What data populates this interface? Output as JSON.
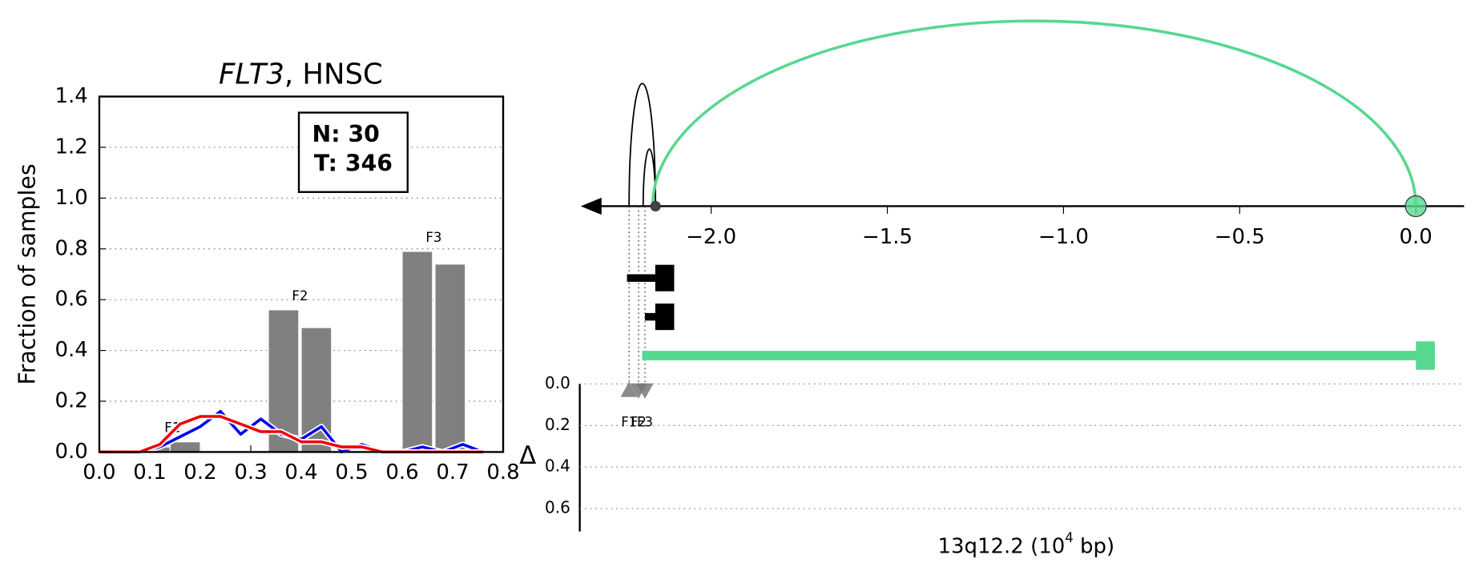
{
  "chart_data": [
    {
      "type": "bar",
      "title": [
        "FLT3",
        ", HNSC"
      ],
      "ylabel": "Fraction of samples",
      "annotations": [
        "N: 30",
        "T: 346"
      ],
      "xlim": [
        0,
        0.8
      ],
      "ylim": [
        0,
        1.4
      ],
      "xticks": [
        {
          "value": 0,
          "label": "0.0"
        },
        0.1,
        0.2,
        0.3,
        0.4,
        0.5,
        0.6,
        0.7,
        0.8
      ],
      "yticks": [
        {
          "value": 0,
          "label": "0.0"
        },
        0.2,
        0.4,
        0.6,
        0.8,
        {
          "value": 1,
          "label": "1.0"
        },
        1.2,
        1.4
      ],
      "grid": true,
      "bars": {
        "x": [
          0.12,
          0.17,
          0.365,
          0.43,
          0.63,
          0.695
        ],
        "values": [
          0.02,
          0.04,
          0.56,
          0.49,
          0.79,
          0.74
        ],
        "color": "#808080",
        "labels": [
          "F1",
          "F2",
          "F3"
        ]
      },
      "x": [
        0,
        0.04,
        0.08,
        0.12,
        0.16,
        0.2,
        0.24,
        0.28,
        0.32,
        0.36,
        0.4,
        0.44,
        0.48,
        0.52,
        0.56,
        0.6,
        0.64,
        0.68,
        0.72,
        0.76
      ],
      "series": [
        {
          "color": "#0000ee",
          "values": [
            0,
            0,
            0,
            0.02,
            0.06,
            0.1,
            0.16,
            0.07,
            0.13,
            0.07,
            0.05,
            0.1,
            0,
            0.03,
            0,
            0,
            0.02,
            0,
            0.03,
            0
          ]
        },
        {
          "color": "#ee0000",
          "values": [
            0,
            0,
            0,
            0.03,
            0.11,
            0.14,
            0.14,
            0.11,
            0.08,
            0.08,
            0.04,
            0.04,
            0.02,
            0.02,
            0,
            0,
            0,
            0,
            0,
            0
          ]
        }
      ]
    },
    {
      "type": "arc",
      "xlabel": [
        "13q12.2 (10",
        "4",
        " bp)"
      ],
      "ylabel": "Δ",
      "xlim": [
        -2.373,
        0.137
      ],
      "xticks": [
        {
          "value": -2,
          "label": "−2.0"
        },
        {
          "value": -1.5,
          "label": "−1.5"
        },
        {
          "value": -1,
          "label": "−1.0"
        },
        {
          "value": -0.5,
          "label": "−0.5"
        },
        {
          "value": 0,
          "label": "0.0"
        }
      ],
      "ylim": [
        0,
        0.71
      ],
      "yticks": [
        {
          "value": 0,
          "label": "0.0"
        },
        0.2,
        0.4,
        0.6
      ],
      "arcs": [
        {
          "start": -2.233,
          "end": -2.158,
          "color": "#000000"
        },
        {
          "start": -2.193,
          "end": -2.158,
          "color": "#000000"
        },
        {
          "start": -2.166,
          "end": 0,
          "color": "#56d88f"
        }
      ],
      "nodes": [
        {
          "x": -2.158,
          "color": "#444444"
        },
        {
          "x": 0,
          "color": "#56d88f"
        }
      ],
      "genes": [
        {
          "start": -2.239,
          "end": -2.105,
          "color": "#000000"
        },
        {
          "start": -2.188,
          "end": -2.105,
          "color": "#000000"
        },
        {
          "start": -2.196,
          "end": 0.054,
          "color": "#56d88f"
        }
      ],
      "breakpoints": {
        "x": [
          -2.233,
          -2.206,
          -2.188
        ],
        "values": [
          0.03,
          0.03,
          0.03
        ],
        "labels": [
          "F1",
          "F2",
          "F3"
        ],
        "directions": [
          "up",
          "down",
          "down"
        ],
        "color": "#777777"
      }
    }
  ]
}
